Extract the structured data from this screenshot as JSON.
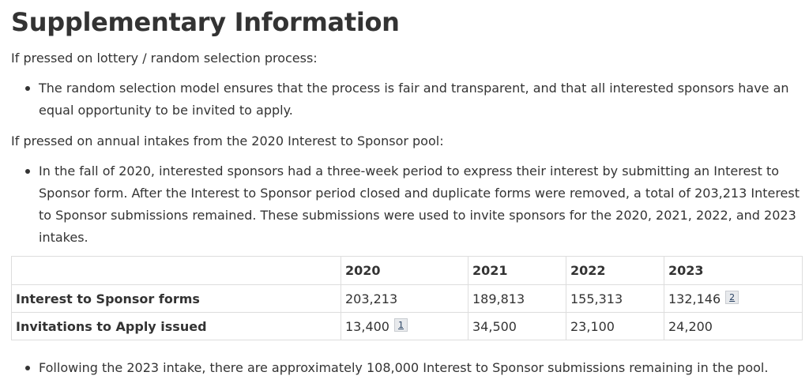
{
  "title": "Supplementary Information",
  "section1": {
    "intro": "If pressed on lottery / random selection process:",
    "bullets": [
      "The random selection model ensures that the process is fair and transparent, and that all interested sponsors have an equal opportunity to be invited to apply."
    ]
  },
  "section2": {
    "intro": "If pressed on annual intakes from the 2020 Interest to Sponsor pool:",
    "bullets": [
      "In the fall of 2020, interested sponsors had a three-week period to express their interest by submitting an Interest to Sponsor form. After the Interest to Sponsor period closed and duplicate forms were removed, a total of 203,213 Interest to Sponsor submissions remained. These submissions were used to invite sponsors for the 2020, 2021, 2022, and 2023 intakes."
    ]
  },
  "table": {
    "headers": [
      "",
      "2020",
      "2021",
      "2022",
      "2023"
    ],
    "rows": [
      {
        "label": "Interest to Sponsor forms",
        "cells": [
          "203,213",
          "189,813",
          "155,313",
          "132,146"
        ],
        "footnote_2023": "2"
      },
      {
        "label": "Invitations to Apply issued",
        "cells": [
          "13,400",
          "34,500",
          "23,100",
          "24,200"
        ],
        "footnote_2020": "1"
      }
    ]
  },
  "section3": {
    "bullets": [
      "Following the 2023 intake, there are approximately 108,000 Interest to Sponsor submissions remaining in the pool."
    ]
  }
}
